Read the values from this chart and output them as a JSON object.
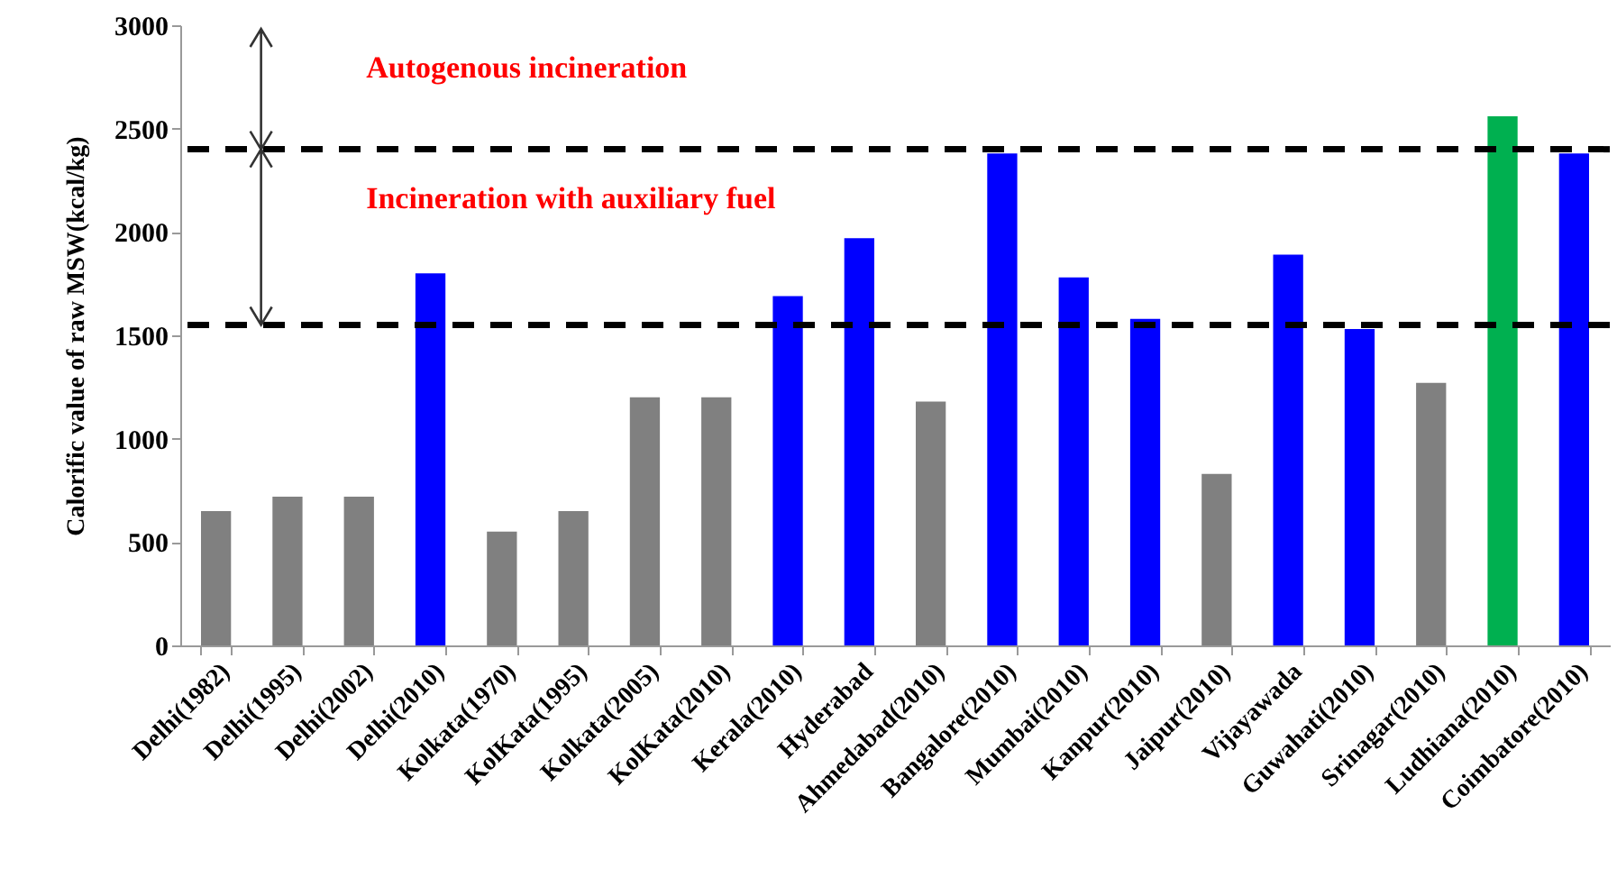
{
  "chart_data": {
    "type": "bar",
    "ylabel": "Calorific value of raw MSW(kcal/kg)",
    "categories": [
      "Delhi(1982)",
      "Delhi(1995)",
      "Delhi(2002)",
      "Delhi(2010)",
      "Kolkata(1970)",
      "KolKata(1995)",
      "Kolkata(2005)",
      "KolKata(2010)",
      "Kerala(2010)",
      "Hyderabad",
      "Ahmedabad(2010)",
      "Bangalore(2010)",
      "Mumbai(2010)",
      "Kanpur(2010)",
      "Jaipur(2010)",
      "Vijayawada",
      "Guwahati(2010)",
      "Srinagar(2010)",
      "Ludhiana(2010)",
      "Coimbatore(2010)"
    ],
    "values": [
      650,
      720,
      720,
      1800,
      550,
      650,
      1200,
      1200,
      1690,
      1970,
      1180,
      2380,
      1780,
      1580,
      830,
      1890,
      1530,
      1270,
      2560,
      2380
    ],
    "colors": [
      "#808080",
      "#808080",
      "#808080",
      "#0000ff",
      "#808080",
      "#808080",
      "#808080",
      "#808080",
      "#0000ff",
      "#0000ff",
      "#808080",
      "#0000ff",
      "#0000ff",
      "#0000ff",
      "#808080",
      "#0000ff",
      "#0000ff",
      "#808080",
      "#00b050",
      "#0000ff"
    ],
    "ylim": [
      0,
      3000
    ],
    "yticks": [
      0,
      500,
      1000,
      1500,
      2000,
      2500,
      3000
    ],
    "grid": false,
    "ref_lines": [
      {
        "axis": "y",
        "value": 2400,
        "color": "#000000",
        "line_style": "dashed"
      },
      {
        "axis": "y",
        "value": 1550,
        "color": "#000000",
        "line_style": "dashed"
      }
    ],
    "annotations": [
      "Autogenous incineration",
      "Incineration with auxiliary fuel"
    ]
  }
}
